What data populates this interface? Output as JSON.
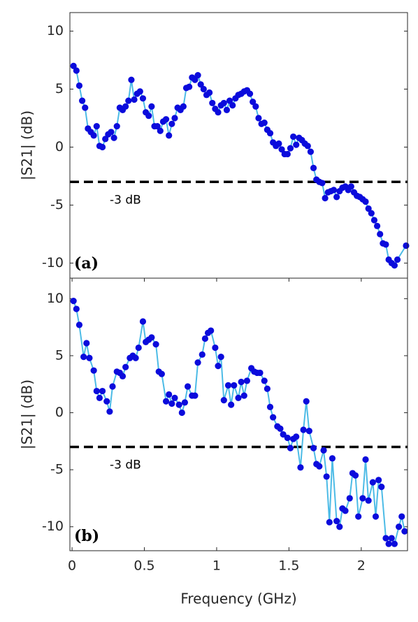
{
  "chart_data": [
    {
      "type": "line",
      "panel_label": "(a)",
      "ylabel": "|S21| (dB)",
      "xlim": [
        -0.015,
        2.32
      ],
      "ylim": [
        -11.3,
        11.6
      ],
      "yticks": [
        -10,
        -5,
        0,
        5,
        10
      ],
      "threshold": {
        "value": -3,
        "label": "-3 dB"
      },
      "line_color": "#4cbbe6",
      "marker_color": "#0b0bdc",
      "x": [
        0.01,
        0.03,
        0.05,
        0.07,
        0.09,
        0.11,
        0.13,
        0.15,
        0.17,
        0.19,
        0.21,
        0.23,
        0.25,
        0.27,
        0.29,
        0.31,
        0.33,
        0.35,
        0.37,
        0.39,
        0.41,
        0.43,
        0.45,
        0.47,
        0.49,
        0.51,
        0.53,
        0.55,
        0.57,
        0.59,
        0.61,
        0.63,
        0.65,
        0.67,
        0.69,
        0.71,
        0.73,
        0.75,
        0.77,
        0.79,
        0.81,
        0.83,
        0.85,
        0.87,
        0.89,
        0.91,
        0.93,
        0.95,
        0.97,
        0.99,
        1.01,
        1.03,
        1.05,
        1.07,
        1.09,
        1.11,
        1.13,
        1.15,
        1.17,
        1.19,
        1.21,
        1.23,
        1.25,
        1.27,
        1.29,
        1.31,
        1.33,
        1.35,
        1.37,
        1.39,
        1.41,
        1.43,
        1.45,
        1.47,
        1.49,
        1.51,
        1.53,
        1.55,
        1.57,
        1.59,
        1.61,
        1.63,
        1.65,
        1.67,
        1.69,
        1.71,
        1.73,
        1.75,
        1.77,
        1.79,
        1.81,
        1.83,
        1.85,
        1.87,
        1.89,
        1.91,
        1.93,
        1.95,
        1.97,
        1.99,
        2.01,
        2.03,
        2.05,
        2.07,
        2.09,
        2.11,
        2.13,
        2.15,
        2.17,
        2.19,
        2.21,
        2.23,
        2.25,
        2.31
      ],
      "values": [
        7.0,
        6.6,
        5.3,
        4.0,
        3.4,
        1.6,
        1.3,
        1.0,
        1.8,
        0.1,
        0.0,
        0.7,
        1.1,
        1.3,
        0.8,
        1.8,
        3.4,
        3.2,
        3.5,
        4.0,
        5.8,
        4.1,
        4.6,
        4.8,
        4.2,
        3.0,
        2.7,
        3.5,
        1.8,
        1.8,
        1.4,
        2.2,
        2.4,
        1.0,
        2.0,
        2.5,
        3.4,
        3.2,
        3.5,
        5.1,
        5.2,
        6.0,
        5.8,
        6.2,
        5.4,
        5.0,
        4.5,
        4.7,
        3.8,
        3.3,
        3.0,
        3.6,
        3.8,
        3.2,
        4.0,
        3.6,
        4.2,
        4.5,
        4.6,
        4.8,
        4.9,
        4.6,
        3.9,
        3.5,
        2.5,
        2.0,
        2.1,
        1.5,
        1.2,
        0.4,
        0.1,
        0.3,
        -0.2,
        -0.6,
        -0.6,
        -0.1,
        0.9,
        0.2,
        0.8,
        0.6,
        0.3,
        0.1,
        -0.4,
        -1.8,
        -2.8,
        -3.0,
        -3.1,
        -4.4,
        -3.9,
        -3.8,
        -3.7,
        -4.3,
        -3.8,
        -3.5,
        -3.4,
        -3.7,
        -3.4,
        -3.9,
        -4.2,
        -4.3,
        -4.5,
        -4.7,
        -5.3,
        -5.7,
        -6.3,
        -6.8,
        -7.5,
        -8.3,
        -8.4,
        -9.7,
        -10.0,
        -10.2,
        -9.7,
        -8.5
      ]
    },
    {
      "type": "line",
      "panel_label": "(b)",
      "ylabel": "|S21| (dB)",
      "xlabel": "Frequency (GHz)",
      "xlim": [
        -0.015,
        2.32
      ],
      "ylim": [
        -12.1,
        11.8
      ],
      "yticks": [
        -10,
        -5,
        0,
        5,
        10
      ],
      "xticks": [
        0,
        0.5,
        1,
        1.5,
        2
      ],
      "threshold": {
        "value": -3,
        "label": "-3 dB"
      },
      "line_color": "#4cbbe6",
      "marker_color": "#0b0bdc",
      "x": [
        0.01,
        0.03,
        0.05,
        0.08,
        0.1,
        0.12,
        0.15,
        0.17,
        0.19,
        0.21,
        0.24,
        0.26,
        0.28,
        0.31,
        0.33,
        0.35,
        0.37,
        0.4,
        0.42,
        0.44,
        0.46,
        0.49,
        0.51,
        0.53,
        0.55,
        0.58,
        0.6,
        0.62,
        0.65,
        0.67,
        0.69,
        0.71,
        0.74,
        0.76,
        0.78,
        0.8,
        0.83,
        0.85,
        0.87,
        0.9,
        0.92,
        0.94,
        0.96,
        0.99,
        1.01,
        1.03,
        1.05,
        1.08,
        1.1,
        1.12,
        1.15,
        1.17,
        1.19,
        1.21,
        1.24,
        1.26,
        1.28,
        1.3,
        1.33,
        1.35,
        1.37,
        1.39,
        1.42,
        1.44,
        1.46,
        1.49,
        1.51,
        1.53,
        1.55,
        1.58,
        1.6,
        1.62,
        1.64,
        1.67,
        1.69,
        1.71,
        1.74,
        1.76,
        1.78,
        1.8,
        1.83,
        1.85,
        1.87,
        1.89,
        1.92,
        1.94,
        1.96,
        1.98,
        2.01,
        2.03,
        2.05,
        2.08,
        2.1,
        2.12,
        2.14,
        2.17,
        2.19,
        2.21,
        2.23,
        2.26,
        2.28,
        2.3
      ],
      "values": [
        9.8,
        9.1,
        7.7,
        4.9,
        6.1,
        4.8,
        3.7,
        1.9,
        1.3,
        1.9,
        1.0,
        0.1,
        2.3,
        3.6,
        3.5,
        3.2,
        4.0,
        4.8,
        5.0,
        4.8,
        5.7,
        8.0,
        6.2,
        6.4,
        6.6,
        6.0,
        3.6,
        3.4,
        1.0,
        1.6,
        0.8,
        1.3,
        0.7,
        0.0,
        0.9,
        2.3,
        1.5,
        1.5,
        4.4,
        5.1,
        6.5,
        7.0,
        7.2,
        5.7,
        4.1,
        4.9,
        1.1,
        2.4,
        0.7,
        2.4,
        1.3,
        2.7,
        1.5,
        2.8,
        3.9,
        3.6,
        3.5,
        3.5,
        2.8,
        2.1,
        0.5,
        -0.4,
        -1.2,
        -1.4,
        -1.9,
        -2.2,
        -3.1,
        -2.3,
        -2.1,
        -4.8,
        -1.5,
        1.0,
        -1.6,
        -3.1,
        -4.5,
        -4.7,
        -3.3,
        -5.6,
        -9.6,
        -4.0,
        -9.5,
        -10.0,
        -8.4,
        -8.6,
        -7.5,
        -5.3,
        -5.5,
        -9.1,
        -7.5,
        -4.1,
        -7.7,
        -6.1,
        -9.1,
        -5.9,
        -6.5,
        -11.0,
        -11.5,
        -11.0,
        -11.5,
        -10.0,
        -9.1,
        -10.4
      ]
    }
  ]
}
